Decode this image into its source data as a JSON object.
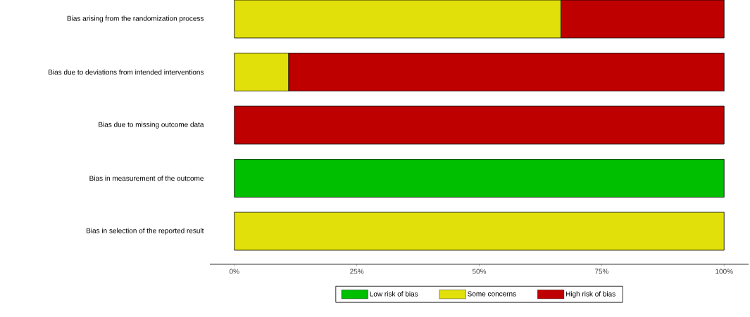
{
  "chart_data": {
    "type": "bar",
    "orientation": "horizontal",
    "stacked": true,
    "categories": [
      "Bias arising from the randomization process",
      "Bias due to deviations from intended interventions",
      "Bias due to missing outcome data",
      "Bias in measurement of the outcome",
      "Bias in selection of the reported result"
    ],
    "series": [
      {
        "name": "Low risk of bias",
        "color": "#00bf00",
        "values": [
          0,
          0,
          0,
          100,
          0
        ]
      },
      {
        "name": "Some concerns",
        "color": "#e1e00a",
        "values": [
          66.7,
          11.1,
          0,
          0,
          100
        ]
      },
      {
        "name": "High risk of bias",
        "color": "#bf0000",
        "values": [
          33.3,
          88.9,
          100,
          0,
          0
        ]
      }
    ],
    "xlim": [
      -5,
      105
    ],
    "xticks": [
      {
        "value": 0,
        "label": "0%"
      },
      {
        "value": 25,
        "label": "25%"
      },
      {
        "value": 50,
        "label": "50%"
      },
      {
        "value": 75,
        "label": "75%"
      },
      {
        "value": 100,
        "label": "100%"
      }
    ],
    "legend": "bottom"
  }
}
